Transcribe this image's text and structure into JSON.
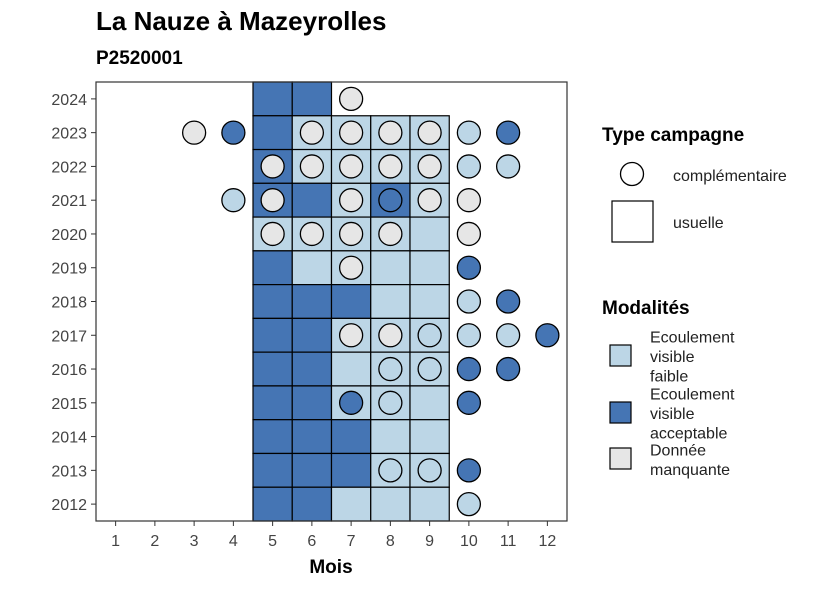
{
  "chart_data": {
    "type": "heatmap",
    "title": "La Nauze à Mazeyrolles",
    "subtitle": "P2520001",
    "xlabel": "Mois",
    "ylabel": "",
    "x_ticks": [
      "1",
      "2",
      "3",
      "4",
      "5",
      "6",
      "7",
      "8",
      "9",
      "10",
      "11",
      "12"
    ],
    "y_ticks": [
      "2012",
      "2013",
      "2014",
      "2015",
      "2016",
      "2017",
      "2018",
      "2019",
      "2020",
      "2021",
      "2022",
      "2023",
      "2024"
    ],
    "xlim": [
      0.5,
      12.5
    ],
    "ylim": [
      2011.5,
      2024.5
    ],
    "grid": false,
    "colors": {
      "Ecoulement visible faible": "#BCD6E6",
      "Ecoulement visible acceptable": "#4575B4",
      "Donnée manquante": "#E6E6E6"
    },
    "legend_type": {
      "title": "Type campagne",
      "items": [
        {
          "label": "complémentaire",
          "shape": "circle"
        },
        {
          "label": "usuelle",
          "shape": "square"
        }
      ]
    },
    "legend_modalites": {
      "title": "Modalités",
      "items": [
        {
          "key": "Ecoulement visible faible",
          "lines": [
            "Ecoulement",
            "visible",
            "faible"
          ]
        },
        {
          "key": "Ecoulement visible acceptable",
          "lines": [
            "Ecoulement",
            "visible",
            "acceptable"
          ]
        },
        {
          "key": "Donnée manquante",
          "lines": [
            "Donnée",
            "manquante"
          ]
        }
      ]
    },
    "usuelle": [
      {
        "year": 2024,
        "month": 5,
        "modalite": "Ecoulement visible acceptable"
      },
      {
        "year": 2024,
        "month": 6,
        "modalite": "Ecoulement visible acceptable"
      },
      {
        "year": 2023,
        "month": 5,
        "modalite": "Ecoulement visible acceptable"
      },
      {
        "year": 2023,
        "month": 6,
        "modalite": "Ecoulement visible faible"
      },
      {
        "year": 2023,
        "month": 7,
        "modalite": "Ecoulement visible faible"
      },
      {
        "year": 2023,
        "month": 8,
        "modalite": "Ecoulement visible faible"
      },
      {
        "year": 2023,
        "month": 9,
        "modalite": "Ecoulement visible faible"
      },
      {
        "year": 2022,
        "month": 5,
        "modalite": "Ecoulement visible acceptable"
      },
      {
        "year": 2022,
        "month": 6,
        "modalite": "Ecoulement visible faible"
      },
      {
        "year": 2022,
        "month": 7,
        "modalite": "Ecoulement visible faible"
      },
      {
        "year": 2022,
        "month": 8,
        "modalite": "Ecoulement visible faible"
      },
      {
        "year": 2022,
        "month": 9,
        "modalite": "Ecoulement visible faible"
      },
      {
        "year": 2021,
        "month": 5,
        "modalite": "Ecoulement visible acceptable"
      },
      {
        "year": 2021,
        "month": 6,
        "modalite": "Ecoulement visible acceptable"
      },
      {
        "year": 2021,
        "month": 7,
        "modalite": "Ecoulement visible faible"
      },
      {
        "year": 2021,
        "month": 8,
        "modalite": "Ecoulement visible acceptable"
      },
      {
        "year": 2021,
        "month": 9,
        "modalite": "Ecoulement visible faible"
      },
      {
        "year": 2020,
        "month": 5,
        "modalite": "Ecoulement visible faible"
      },
      {
        "year": 2020,
        "month": 6,
        "modalite": "Ecoulement visible faible"
      },
      {
        "year": 2020,
        "month": 7,
        "modalite": "Ecoulement visible faible"
      },
      {
        "year": 2020,
        "month": 8,
        "modalite": "Ecoulement visible faible"
      },
      {
        "year": 2020,
        "month": 9,
        "modalite": "Ecoulement visible faible"
      },
      {
        "year": 2019,
        "month": 5,
        "modalite": "Ecoulement visible acceptable"
      },
      {
        "year": 2019,
        "month": 6,
        "modalite": "Ecoulement visible faible"
      },
      {
        "year": 2019,
        "month": 7,
        "modalite": "Ecoulement visible faible"
      },
      {
        "year": 2019,
        "month": 8,
        "modalite": "Ecoulement visible faible"
      },
      {
        "year": 2019,
        "month": 9,
        "modalite": "Ecoulement visible faible"
      },
      {
        "year": 2018,
        "month": 5,
        "modalite": "Ecoulement visible acceptable"
      },
      {
        "year": 2018,
        "month": 6,
        "modalite": "Ecoulement visible acceptable"
      },
      {
        "year": 2018,
        "month": 7,
        "modalite": "Ecoulement visible acceptable"
      },
      {
        "year": 2018,
        "month": 8,
        "modalite": "Ecoulement visible faible"
      },
      {
        "year": 2018,
        "month": 9,
        "modalite": "Ecoulement visible faible"
      },
      {
        "year": 2017,
        "month": 5,
        "modalite": "Ecoulement visible acceptable"
      },
      {
        "year": 2017,
        "month": 6,
        "modalite": "Ecoulement visible acceptable"
      },
      {
        "year": 2017,
        "month": 7,
        "modalite": "Ecoulement visible faible"
      },
      {
        "year": 2017,
        "month": 8,
        "modalite": "Ecoulement visible faible"
      },
      {
        "year": 2017,
        "month": 9,
        "modalite": "Ecoulement visible faible"
      },
      {
        "year": 2016,
        "month": 5,
        "modalite": "Ecoulement visible acceptable"
      },
      {
        "year": 2016,
        "month": 6,
        "modalite": "Ecoulement visible acceptable"
      },
      {
        "year": 2016,
        "month": 7,
        "modalite": "Ecoulement visible faible"
      },
      {
        "year": 2016,
        "month": 8,
        "modalite": "Ecoulement visible faible"
      },
      {
        "year": 2016,
        "month": 9,
        "modalite": "Ecoulement visible faible"
      },
      {
        "year": 2015,
        "month": 5,
        "modalite": "Ecoulement visible acceptable"
      },
      {
        "year": 2015,
        "month": 6,
        "modalite": "Ecoulement visible acceptable"
      },
      {
        "year": 2015,
        "month": 7,
        "modalite": "Ecoulement visible faible"
      },
      {
        "year": 2015,
        "month": 8,
        "modalite": "Ecoulement visible faible"
      },
      {
        "year": 2015,
        "month": 9,
        "modalite": "Ecoulement visible faible"
      },
      {
        "year": 2014,
        "month": 5,
        "modalite": "Ecoulement visible acceptable"
      },
      {
        "year": 2014,
        "month": 6,
        "modalite": "Ecoulement visible acceptable"
      },
      {
        "year": 2014,
        "month": 7,
        "modalite": "Ecoulement visible acceptable"
      },
      {
        "year": 2014,
        "month": 8,
        "modalite": "Ecoulement visible faible"
      },
      {
        "year": 2014,
        "month": 9,
        "modalite": "Ecoulement visible faible"
      },
      {
        "year": 2013,
        "month": 5,
        "modalite": "Ecoulement visible acceptable"
      },
      {
        "year": 2013,
        "month": 6,
        "modalite": "Ecoulement visible acceptable"
      },
      {
        "year": 2013,
        "month": 7,
        "modalite": "Ecoulement visible acceptable"
      },
      {
        "year": 2013,
        "month": 8,
        "modalite": "Ecoulement visible faible"
      },
      {
        "year": 2013,
        "month": 9,
        "modalite": "Ecoulement visible faible"
      },
      {
        "year": 2012,
        "month": 5,
        "modalite": "Ecoulement visible acceptable"
      },
      {
        "year": 2012,
        "month": 6,
        "modalite": "Ecoulement visible acceptable"
      },
      {
        "year": 2012,
        "month": 7,
        "modalite": "Ecoulement visible faible"
      },
      {
        "year": 2012,
        "month": 8,
        "modalite": "Ecoulement visible faible"
      },
      {
        "year": 2012,
        "month": 9,
        "modalite": "Ecoulement visible faible"
      }
    ],
    "complementaire": [
      {
        "year": 2024,
        "month": 7,
        "modalite": "Donnée manquante"
      },
      {
        "year": 2023,
        "month": 3,
        "modalite": "Donnée manquante"
      },
      {
        "year": 2023,
        "month": 4,
        "modalite": "Ecoulement visible acceptable"
      },
      {
        "year": 2023,
        "month": 6,
        "modalite": "Donnée manquante"
      },
      {
        "year": 2023,
        "month": 7,
        "modalite": "Donnée manquante"
      },
      {
        "year": 2023,
        "month": 8,
        "modalite": "Donnée manquante"
      },
      {
        "year": 2023,
        "month": 9,
        "modalite": "Donnée manquante"
      },
      {
        "year": 2023,
        "month": 10,
        "modalite": "Ecoulement visible faible"
      },
      {
        "year": 2023,
        "month": 11,
        "modalite": "Ecoulement visible acceptable"
      },
      {
        "year": 2022,
        "month": 5,
        "modalite": "Donnée manquante"
      },
      {
        "year": 2022,
        "month": 6,
        "modalite": "Donnée manquante"
      },
      {
        "year": 2022,
        "month": 7,
        "modalite": "Donnée manquante"
      },
      {
        "year": 2022,
        "month": 8,
        "modalite": "Donnée manquante"
      },
      {
        "year": 2022,
        "month": 9,
        "modalite": "Donnée manquante"
      },
      {
        "year": 2022,
        "month": 10,
        "modalite": "Ecoulement visible faible"
      },
      {
        "year": 2022,
        "month": 11,
        "modalite": "Ecoulement visible faible"
      },
      {
        "year": 2021,
        "month": 4,
        "modalite": "Ecoulement visible faible"
      },
      {
        "year": 2021,
        "month": 5,
        "modalite": "Donnée manquante"
      },
      {
        "year": 2021,
        "month": 7,
        "modalite": "Donnée manquante"
      },
      {
        "year": 2021,
        "month": 8,
        "modalite": "Ecoulement visible acceptable"
      },
      {
        "year": 2021,
        "month": 9,
        "modalite": "Donnée manquante"
      },
      {
        "year": 2021,
        "month": 10,
        "modalite": "Donnée manquante"
      },
      {
        "year": 2020,
        "month": 5,
        "modalite": "Donnée manquante"
      },
      {
        "year": 2020,
        "month": 6,
        "modalite": "Donnée manquante"
      },
      {
        "year": 2020,
        "month": 7,
        "modalite": "Donnée manquante"
      },
      {
        "year": 2020,
        "month": 8,
        "modalite": "Donnée manquante"
      },
      {
        "year": 2020,
        "month": 10,
        "modalite": "Donnée manquante"
      },
      {
        "year": 2019,
        "month": 7,
        "modalite": "Donnée manquante"
      },
      {
        "year": 2019,
        "month": 10,
        "modalite": "Ecoulement visible acceptable"
      },
      {
        "year": 2018,
        "month": 10,
        "modalite": "Ecoulement visible faible"
      },
      {
        "year": 2018,
        "month": 11,
        "modalite": "Ecoulement visible acceptable"
      },
      {
        "year": 2017,
        "month": 7,
        "modalite": "Donnée manquante"
      },
      {
        "year": 2017,
        "month": 8,
        "modalite": "Donnée manquante"
      },
      {
        "year": 2017,
        "month": 9,
        "modalite": "Ecoulement visible faible"
      },
      {
        "year": 2017,
        "month": 10,
        "modalite": "Ecoulement visible faible"
      },
      {
        "year": 2017,
        "month": 11,
        "modalite": "Ecoulement visible faible"
      },
      {
        "year": 2017,
        "month": 12,
        "modalite": "Ecoulement visible acceptable"
      },
      {
        "year": 2016,
        "month": 8,
        "modalite": "Ecoulement visible faible"
      },
      {
        "year": 2016,
        "month": 9,
        "modalite": "Ecoulement visible faible"
      },
      {
        "year": 2016,
        "month": 10,
        "modalite": "Ecoulement visible acceptable"
      },
      {
        "year": 2016,
        "month": 11,
        "modalite": "Ecoulement visible acceptable"
      },
      {
        "year": 2015,
        "month": 7,
        "modalite": "Ecoulement visible acceptable"
      },
      {
        "year": 2015,
        "month": 8,
        "modalite": "Ecoulement visible faible"
      },
      {
        "year": 2015,
        "month": 10,
        "modalite": "Ecoulement visible acceptable"
      },
      {
        "year": 2013,
        "month": 8,
        "modalite": "Ecoulement visible faible"
      },
      {
        "year": 2013,
        "month": 9,
        "modalite": "Ecoulement visible faible"
      },
      {
        "year": 2013,
        "month": 10,
        "modalite": "Ecoulement visible acceptable"
      },
      {
        "year": 2012,
        "month": 10,
        "modalite": "Ecoulement visible faible"
      }
    ]
  }
}
